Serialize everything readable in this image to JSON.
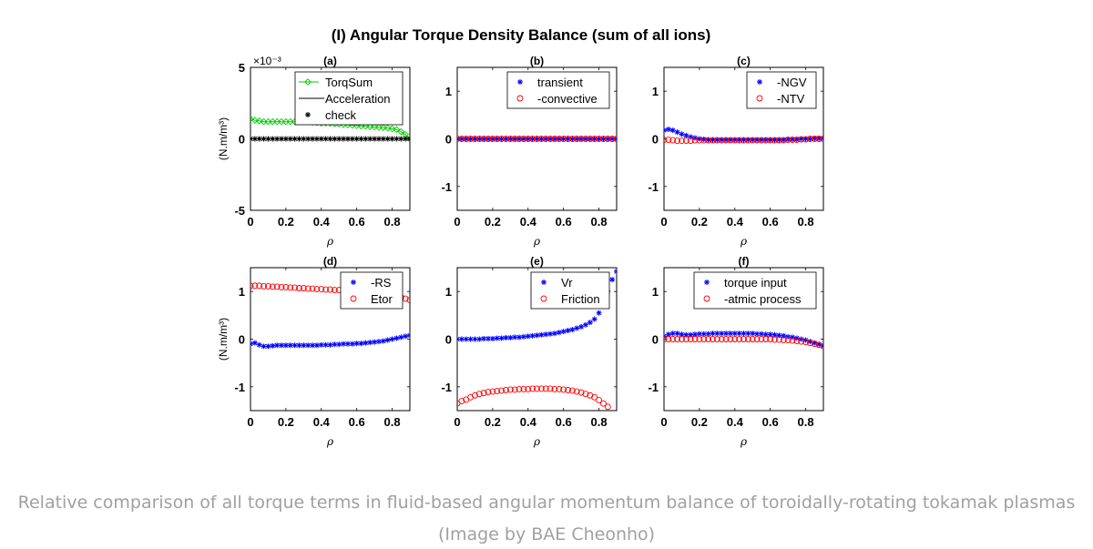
{
  "figure": {
    "title": "(I) Angular Torque Density Balance (sum of all ions)"
  },
  "caption": {
    "line1": "Relative comparison of all torque terms in fluid-based angular momentum balance of toroidally-rotating tokamak plasmas",
    "line2": "(Image by BAE Cheonho)"
  },
  "colors": {
    "green": "#00cc00",
    "blue": "#0000ff",
    "red": "#ff0000",
    "black": "#000000"
  },
  "chart_data": [
    {
      "id": "a",
      "type": "scatter",
      "title": "(a)",
      "xlabel": "ρ",
      "ylabel": "(N.m/m³)",
      "xlim": [
        0,
        0.9
      ],
      "ylim": [
        -0.005,
        0.005
      ],
      "yticks": [
        -0.005,
        0,
        0.005
      ],
      "ytick_labels": [
        "-5",
        "0",
        "5"
      ],
      "exponent_label": "×10⁻³",
      "xticks": [
        0,
        0.2,
        0.4,
        0.6,
        0.8
      ],
      "xtick_labels": [
        "0",
        "0.2",
        "0.4",
        "0.6",
        "0.8"
      ],
      "legend_position": "top-right",
      "x": [
        0,
        0.025,
        0.05,
        0.075,
        0.1,
        0.125,
        0.15,
        0.175,
        0.2,
        0.225,
        0.25,
        0.275,
        0.3,
        0.325,
        0.35,
        0.375,
        0.4,
        0.425,
        0.45,
        0.475,
        0.5,
        0.525,
        0.55,
        0.575,
        0.6,
        0.625,
        0.65,
        0.675,
        0.7,
        0.725,
        0.75,
        0.775,
        0.8,
        0.825,
        0.85,
        0.875,
        0.9
      ],
      "series": [
        {
          "name": "TorqSum",
          "marker": "diamond",
          "line": true,
          "color": "#00cc00",
          "values": [
            0.0014,
            0.0013,
            0.00125,
            0.0012,
            0.0012,
            0.0012,
            0.0012,
            0.0012,
            0.0012,
            0.0012,
            0.0012,
            0.0012,
            0.0012,
            0.00118,
            0.00115,
            0.00113,
            0.0011,
            0.0011,
            0.00108,
            0.00105,
            0.00103,
            0.001,
            0.00098,
            0.00095,
            0.00093,
            0.0009,
            0.00088,
            0.00085,
            0.00083,
            0.0008,
            0.00078,
            0.00075,
            0.0007,
            0.00065,
            0.0005,
            0.0003,
            0.0
          ]
        },
        {
          "name": "Acceleration",
          "marker": "none",
          "line": true,
          "color": "#000000",
          "values": [
            0,
            0,
            0,
            0,
            0,
            0,
            0,
            0,
            0,
            0,
            0,
            0,
            0,
            0,
            0,
            0,
            0,
            0,
            0,
            0,
            0,
            0,
            0,
            0,
            0,
            0,
            0,
            0,
            0,
            0,
            0,
            0,
            0,
            0,
            0,
            0,
            0
          ]
        },
        {
          "name": "check",
          "marker": "star",
          "line": false,
          "color": "#000000",
          "values": [
            0,
            0,
            0,
            0,
            0,
            0,
            0,
            0,
            0,
            0,
            0,
            0,
            0,
            0,
            0,
            0,
            0,
            0,
            0,
            0,
            0,
            0,
            0,
            0,
            0,
            0,
            0,
            0,
            0,
            0,
            0,
            0,
            0,
            0,
            0,
            0,
            0
          ]
        }
      ]
    },
    {
      "id": "b",
      "type": "scatter",
      "title": "(b)",
      "xlabel": "ρ",
      "ylabel": "",
      "xlim": [
        0,
        0.9
      ],
      "ylim": [
        -1.5,
        1.5
      ],
      "yticks": [
        -1,
        0,
        1
      ],
      "ytick_labels": [
        "-1",
        "0",
        "1"
      ],
      "xticks": [
        0,
        0.2,
        0.4,
        0.6,
        0.8
      ],
      "xtick_labels": [
        "0",
        "0.2",
        "0.4",
        "0.6",
        "0.8"
      ],
      "legend_position": "top-right",
      "x": [
        0,
        0.025,
        0.05,
        0.075,
        0.1,
        0.125,
        0.15,
        0.175,
        0.2,
        0.225,
        0.25,
        0.275,
        0.3,
        0.325,
        0.35,
        0.375,
        0.4,
        0.425,
        0.45,
        0.475,
        0.5,
        0.525,
        0.55,
        0.575,
        0.6,
        0.625,
        0.65,
        0.675,
        0.7,
        0.725,
        0.75,
        0.775,
        0.8,
        0.825,
        0.85,
        0.875,
        0.9
      ],
      "series": [
        {
          "name": "transient",
          "marker": "star",
          "line": false,
          "color": "#0000ff",
          "values": [
            0,
            0,
            0,
            0,
            0,
            0,
            0,
            0,
            0,
            0,
            0,
            0,
            0,
            0,
            0,
            0,
            0,
            0,
            0,
            0,
            0,
            0,
            0,
            0,
            0,
            0,
            0,
            0,
            0,
            0,
            0,
            0,
            0,
            0,
            0,
            0,
            0
          ]
        },
        {
          "name": "-convective",
          "marker": "circle",
          "line": false,
          "color": "#ff0000",
          "values": [
            0,
            0,
            0,
            0,
            0,
            0,
            0,
            0,
            0,
            0,
            0,
            0,
            0,
            0,
            0,
            0,
            0,
            0,
            0,
            0,
            0,
            0,
            0,
            0,
            0,
            0,
            0,
            0,
            0,
            0,
            0,
            0,
            0,
            0,
            0,
            0,
            0
          ]
        }
      ]
    },
    {
      "id": "c",
      "type": "scatter",
      "title": "(c)",
      "xlabel": "ρ",
      "ylabel": "",
      "xlim": [
        0,
        0.9
      ],
      "ylim": [
        -1.5,
        1.5
      ],
      "yticks": [
        -1,
        0,
        1
      ],
      "ytick_labels": [
        "-1",
        "0",
        "1"
      ],
      "xticks": [
        0,
        0.2,
        0.4,
        0.6,
        0.8
      ],
      "xtick_labels": [
        "0",
        "0.2",
        "0.4",
        "0.6",
        "0.8"
      ],
      "legend_position": "top-right",
      "x": [
        0,
        0.025,
        0.05,
        0.075,
        0.1,
        0.125,
        0.15,
        0.175,
        0.2,
        0.225,
        0.25,
        0.275,
        0.3,
        0.325,
        0.35,
        0.375,
        0.4,
        0.425,
        0.45,
        0.475,
        0.5,
        0.525,
        0.55,
        0.575,
        0.6,
        0.625,
        0.65,
        0.675,
        0.7,
        0.725,
        0.75,
        0.775,
        0.8,
        0.825,
        0.85,
        0.875,
        0.9
      ],
      "series": [
        {
          "name": "-NGV",
          "marker": "star",
          "line": false,
          "color": "#0000ff",
          "values": [
            0.18,
            0.2,
            0.18,
            0.14,
            0.1,
            0.07,
            0.04,
            0.02,
            0.0,
            -0.01,
            -0.02,
            -0.02,
            -0.02,
            -0.02,
            -0.02,
            -0.02,
            -0.02,
            -0.02,
            -0.02,
            -0.02,
            -0.02,
            -0.02,
            -0.02,
            -0.02,
            -0.02,
            -0.02,
            -0.02,
            -0.02,
            -0.01,
            -0.01,
            -0.01,
            0,
            0,
            0,
            0.01,
            0.01,
            0.01
          ]
        },
        {
          "name": "-NTV",
          "marker": "circle",
          "line": false,
          "color": "#ff0000",
          "values": [
            -0.02,
            -0.02,
            -0.03,
            -0.04,
            -0.04,
            -0.04,
            -0.04,
            -0.03,
            -0.03,
            -0.03,
            -0.03,
            -0.03,
            -0.03,
            -0.03,
            -0.03,
            -0.03,
            -0.03,
            -0.03,
            -0.03,
            -0.03,
            -0.03,
            -0.03,
            -0.03,
            -0.03,
            -0.03,
            -0.03,
            -0.03,
            -0.03,
            -0.02,
            -0.02,
            -0.02,
            -0.01,
            -0.01,
            0,
            0,
            0,
            0
          ]
        }
      ]
    },
    {
      "id": "d",
      "type": "scatter",
      "title": "(d)",
      "xlabel": "ρ",
      "ylabel": "(N.m/m³)",
      "xlim": [
        0,
        0.9
      ],
      "ylim": [
        -1.5,
        1.5
      ],
      "yticks": [
        -1,
        0,
        1
      ],
      "ytick_labels": [
        "-1",
        "0",
        "1"
      ],
      "xticks": [
        0,
        0.2,
        0.4,
        0.6,
        0.8
      ],
      "xtick_labels": [
        "0",
        "0.2",
        "0.4",
        "0.6",
        "0.8"
      ],
      "legend_position": "top-right",
      "x": [
        0,
        0.025,
        0.05,
        0.075,
        0.1,
        0.125,
        0.15,
        0.175,
        0.2,
        0.225,
        0.25,
        0.275,
        0.3,
        0.325,
        0.35,
        0.375,
        0.4,
        0.425,
        0.45,
        0.475,
        0.5,
        0.525,
        0.55,
        0.575,
        0.6,
        0.625,
        0.65,
        0.675,
        0.7,
        0.725,
        0.75,
        0.775,
        0.8,
        0.825,
        0.85,
        0.875,
        0.9
      ],
      "series": [
        {
          "name": "-RS",
          "marker": "star",
          "line": false,
          "color": "#0000ff",
          "values": [
            -0.1,
            -0.08,
            -0.12,
            -0.15,
            -0.15,
            -0.14,
            -0.13,
            -0.13,
            -0.13,
            -0.13,
            -0.13,
            -0.13,
            -0.13,
            -0.13,
            -0.13,
            -0.13,
            -0.12,
            -0.12,
            -0.12,
            -0.11,
            -0.11,
            -0.1,
            -0.1,
            -0.1,
            -0.09,
            -0.09,
            -0.08,
            -0.07,
            -0.06,
            -0.05,
            -0.04,
            -0.02,
            0,
            0.02,
            0.04,
            0.06,
            0.08
          ]
        },
        {
          "name": "Etor",
          "marker": "circle",
          "line": false,
          "color": "#ff0000",
          "values": [
            1.12,
            1.12,
            1.12,
            1.11,
            1.11,
            1.1,
            1.1,
            1.09,
            1.09,
            1.08,
            1.08,
            1.07,
            1.07,
            1.06,
            1.06,
            1.05,
            1.05,
            1.04,
            1.04,
            1.03,
            1.03,
            1.02,
            1.01,
            1.0,
            1.0,
            0.99,
            0.98,
            0.97,
            0.96,
            0.95,
            0.94,
            0.93,
            0.92,
            0.9,
            0.88,
            0.85,
            0.82
          ]
        }
      ]
    },
    {
      "id": "e",
      "type": "scatter",
      "title": "(e)",
      "xlabel": "ρ",
      "ylabel": "",
      "xlim": [
        0,
        0.9
      ],
      "ylim": [
        -1.5,
        1.5
      ],
      "yticks": [
        -1,
        0,
        1
      ],
      "ytick_labels": [
        "-1",
        "0",
        "1"
      ],
      "xticks": [
        0,
        0.2,
        0.4,
        0.6,
        0.8
      ],
      "xtick_labels": [
        "0",
        "0.2",
        "0.4",
        "0.6",
        "0.8"
      ],
      "legend_position": "top-right",
      "x": [
        0,
        0.025,
        0.05,
        0.075,
        0.1,
        0.125,
        0.15,
        0.175,
        0.2,
        0.225,
        0.25,
        0.275,
        0.3,
        0.325,
        0.35,
        0.375,
        0.4,
        0.425,
        0.45,
        0.475,
        0.5,
        0.525,
        0.55,
        0.575,
        0.6,
        0.625,
        0.65,
        0.675,
        0.7,
        0.725,
        0.75,
        0.775,
        0.8,
        0.825,
        0.85,
        0.875,
        0.9
      ],
      "series": [
        {
          "name": "Vr",
          "marker": "star",
          "line": false,
          "color": "#0000ff",
          "values": [
            0,
            0,
            0,
            0,
            0,
            0,
            0.01,
            0.01,
            0.01,
            0.02,
            0.02,
            0.03,
            0.03,
            0.04,
            0.04,
            0.05,
            0.06,
            0.07,
            0.08,
            0.09,
            0.1,
            0.11,
            0.12,
            0.14,
            0.16,
            0.18,
            0.2,
            0.23,
            0.26,
            0.3,
            0.35,
            0.42,
            0.55,
            0.75,
            1.0,
            1.25,
            1.42
          ]
        },
        {
          "name": "Friction",
          "marker": "circle",
          "line": false,
          "color": "#ff0000",
          "values": [
            -1.35,
            -1.3,
            -1.27,
            -1.22,
            -1.18,
            -1.15,
            -1.13,
            -1.11,
            -1.1,
            -1.09,
            -1.08,
            -1.07,
            -1.06,
            -1.06,
            -1.05,
            -1.05,
            -1.05,
            -1.04,
            -1.04,
            -1.04,
            -1.04,
            -1.04,
            -1.05,
            -1.05,
            -1.06,
            -1.07,
            -1.08,
            -1.1,
            -1.12,
            -1.15,
            -1.18,
            -1.22,
            -1.28,
            -1.35,
            -1.42,
            null,
            null
          ]
        }
      ]
    },
    {
      "id": "f",
      "type": "scatter",
      "title": "(f)",
      "xlabel": "ρ",
      "ylabel": "",
      "xlim": [
        0,
        0.9
      ],
      "ylim": [
        -1.5,
        1.5
      ],
      "yticks": [
        -1,
        0,
        1
      ],
      "ytick_labels": [
        "-1",
        "0",
        "1"
      ],
      "xticks": [
        0,
        0.2,
        0.4,
        0.6,
        0.8
      ],
      "xtick_labels": [
        "0",
        "0.2",
        "0.4",
        "0.6",
        "0.8"
      ],
      "legend_position": "top-right",
      "x": [
        0,
        0.025,
        0.05,
        0.075,
        0.1,
        0.125,
        0.15,
        0.175,
        0.2,
        0.225,
        0.25,
        0.275,
        0.3,
        0.325,
        0.35,
        0.375,
        0.4,
        0.425,
        0.45,
        0.475,
        0.5,
        0.525,
        0.55,
        0.575,
        0.6,
        0.625,
        0.65,
        0.675,
        0.7,
        0.725,
        0.75,
        0.775,
        0.8,
        0.825,
        0.85,
        0.875,
        0.9
      ],
      "series": [
        {
          "name": "torque input",
          "marker": "star",
          "line": false,
          "color": "#0000ff",
          "values": [
            0.06,
            0.1,
            0.12,
            0.12,
            0.1,
            0.09,
            0.09,
            0.1,
            0.11,
            0.11,
            0.11,
            0.12,
            0.12,
            0.12,
            0.12,
            0.12,
            0.12,
            0.12,
            0.12,
            0.12,
            0.12,
            0.11,
            0.11,
            0.1,
            0.1,
            0.09,
            0.08,
            0.07,
            0.05,
            0.04,
            0.02,
            0,
            -0.02,
            -0.05,
            -0.08,
            -0.11,
            -0.14
          ]
        },
        {
          "name": "-atmic process",
          "marker": "circle",
          "line": false,
          "color": "#ff0000",
          "values": [
            0,
            0,
            0,
            0,
            0,
            0,
            0,
            0,
            0,
            0,
            0,
            0,
            0,
            0,
            0,
            0,
            0,
            0,
            0,
            0,
            0,
            0,
            0,
            0,
            0,
            -0.01,
            -0.01,
            -0.02,
            -0.02,
            -0.03,
            -0.04,
            -0.05,
            -0.06,
            -0.08,
            -0.1,
            -0.12,
            -0.15
          ]
        }
      ]
    }
  ]
}
